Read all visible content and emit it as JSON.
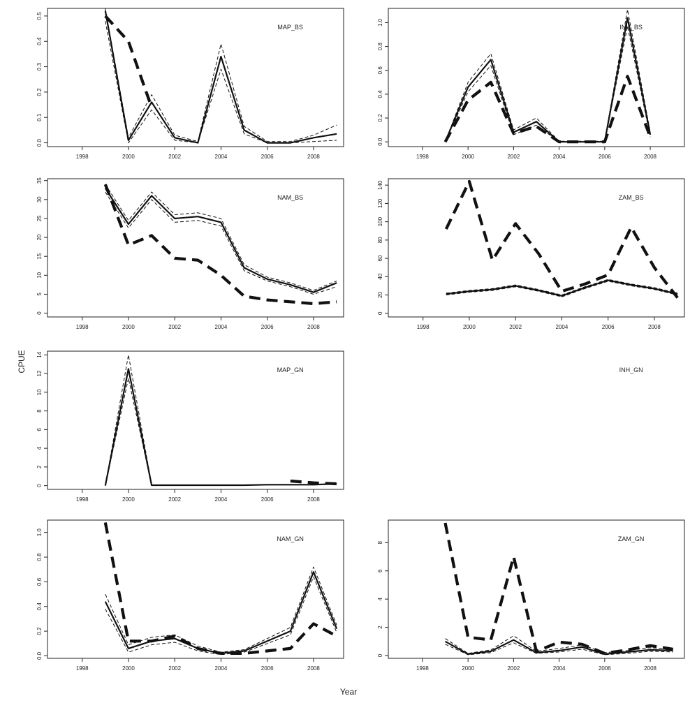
{
  "figure": {
    "ylabel": "CPUE",
    "xlabel": "Year"
  },
  "chart_data": [
    {
      "type": "line",
      "title": "MAP_BS",
      "xlim": [
        1996.5,
        2009.3
      ],
      "ylim": [
        -0.015,
        0.53
      ],
      "xticks": [
        1998,
        2000,
        2002,
        2004,
        2006,
        2008
      ],
      "yticks": [
        0.0,
        0.1,
        0.2,
        0.3,
        0.4,
        0.5
      ],
      "yticklabels": [
        "0.0",
        "0.1",
        "0.2",
        "0.3",
        "0.4",
        "0.5"
      ],
      "series": [
        {
          "style": "solid",
          "x": [
            1999,
            2000,
            2001,
            2002,
            2003,
            2004,
            2005,
            2006,
            2007,
            2008,
            2009
          ],
          "y": [
            0.52,
            0.01,
            0.16,
            0.02,
            0.0,
            0.34,
            0.05,
            0.0,
            0.0,
            0.02,
            0.035
          ]
        },
        {
          "style": "dashed-thin",
          "x": [
            1999,
            2000,
            2001,
            2002,
            2003,
            2004,
            2005,
            2006,
            2007,
            2008,
            2009
          ],
          "y": [
            0.53,
            0.02,
            0.19,
            0.03,
            0.005,
            0.39,
            0.065,
            0.005,
            0.005,
            0.03,
            0.07
          ]
        },
        {
          "style": "dashed-thin",
          "x": [
            1999,
            2000,
            2001,
            2002,
            2003,
            2004,
            2005,
            2006,
            2007,
            2008,
            2009
          ],
          "y": [
            0.48,
            0.0,
            0.13,
            0.01,
            0.0,
            0.29,
            0.035,
            0.0,
            0.0,
            0.005,
            0.01
          ]
        },
        {
          "style": "dashed-thick",
          "x": [
            1999,
            2000,
            2001
          ],
          "y": [
            0.5,
            0.4,
            0.14
          ]
        }
      ]
    },
    {
      "type": "line",
      "title": "INH_BS",
      "xlim": [
        1996.5,
        2009.5
      ],
      "ylim": [
        -0.04,
        1.12
      ],
      "xticks": [
        1998,
        2000,
        2002,
        2004,
        2006,
        2008
      ],
      "yticks": [
        0.0,
        0.2,
        0.4,
        0.6,
        0.8,
        1.0
      ],
      "yticklabels": [
        "0.0",
        "0.2",
        "0.4",
        "0.6",
        "0.8",
        "1.0"
      ],
      "series": [
        {
          "style": "solid",
          "x": [
            1999,
            2000,
            2001,
            2002,
            2003,
            2004,
            2005,
            2006,
            2007,
            2008
          ],
          "y": [
            0.0,
            0.46,
            0.69,
            0.08,
            0.17,
            0.0,
            0.0,
            0.0,
            1.04,
            0.06
          ]
        },
        {
          "style": "dashed-thin",
          "x": [
            1999,
            2000,
            2001,
            2002,
            2003,
            2004,
            2005,
            2006,
            2007,
            2008
          ],
          "y": [
            0.0,
            0.5,
            0.74,
            0.1,
            0.2,
            0.005,
            0.005,
            0.005,
            1.11,
            0.08
          ]
        },
        {
          "style": "dashed-thin",
          "x": [
            1999,
            2000,
            2001,
            2002,
            2003,
            2004,
            2005,
            2006,
            2007,
            2008
          ],
          "y": [
            0.0,
            0.42,
            0.64,
            0.06,
            0.14,
            0.0,
            0.0,
            0.0,
            0.97,
            0.04
          ]
        },
        {
          "style": "dashed-thick",
          "x": [
            1999,
            2000,
            2001,
            2002,
            2003,
            2004,
            2005,
            2006,
            2007,
            2008
          ],
          "y": [
            0.0,
            0.35,
            0.5,
            0.07,
            0.13,
            0.0,
            0.0,
            0.0,
            0.55,
            0.04
          ]
        }
      ]
    },
    {
      "type": "line",
      "title": "NAM_BS",
      "xlim": [
        1996.5,
        2009.3
      ],
      "ylim": [
        -1,
        35.5
      ],
      "xticks": [
        1998,
        2000,
        2002,
        2004,
        2006,
        2008
      ],
      "yticks": [
        0,
        5,
        10,
        15,
        20,
        25,
        30,
        35
      ],
      "yticklabels": [
        "0",
        "5",
        "10",
        "15",
        "20",
        "25",
        "30",
        "35"
      ],
      "series": [
        {
          "style": "solid",
          "x": [
            1999,
            2000,
            2001,
            2002,
            2003,
            2004,
            2005,
            2006,
            2007,
            2008,
            2009
          ],
          "y": [
            33,
            23.5,
            31,
            25,
            25.5,
            24,
            12,
            9,
            7.5,
            5.5,
            8
          ]
        },
        {
          "style": "dashed-thin",
          "x": [
            1999,
            2000,
            2001,
            2002,
            2003,
            2004,
            2005,
            2006,
            2007,
            2008,
            2009
          ],
          "y": [
            34,
            24.5,
            32,
            26,
            26.5,
            25,
            12.8,
            9.5,
            8,
            6,
            8.5
          ]
        },
        {
          "style": "dashed-thin",
          "x": [
            1999,
            2000,
            2001,
            2002,
            2003,
            2004,
            2005,
            2006,
            2007,
            2008,
            2009
          ],
          "y": [
            32,
            22.5,
            30,
            24,
            24.5,
            23,
            11.2,
            8.5,
            7,
            5,
            7
          ]
        },
        {
          "style": "dashed-thick",
          "x": [
            1999,
            2000,
            2001,
            2002,
            2003,
            2004,
            2005,
            2006,
            2007,
            2008,
            2009
          ],
          "y": [
            34,
            18,
            20.5,
            14.5,
            14,
            10,
            4.5,
            3.5,
            3,
            2.5,
            3
          ]
        }
      ]
    },
    {
      "type": "line",
      "title": "ZAM_BS",
      "xlim": [
        1996.5,
        2009.3
      ],
      "ylim": [
        -4,
        147
      ],
      "xticks": [
        1998,
        2000,
        2002,
        2004,
        2006,
        2008
      ],
      "yticks": [
        0,
        20,
        40,
        60,
        80,
        100,
        120,
        140
      ],
      "yticklabels": [
        "0",
        "20",
        "40",
        "60",
        "80",
        "100",
        "120",
        "140"
      ],
      "series": [
        {
          "style": "solid",
          "x": [
            1999,
            2000,
            2001,
            2002,
            2003,
            2004,
            2005,
            2006,
            2007,
            2008,
            2009
          ],
          "y": [
            21,
            24,
            26,
            30,
            25,
            19,
            28,
            36,
            31,
            27,
            21
          ]
        },
        {
          "style": "dashed-thin",
          "x": [
            1999,
            2000,
            2001,
            2002,
            2003,
            2004,
            2005,
            2006,
            2007,
            2008,
            2009
          ],
          "y": [
            22,
            25,
            27,
            31,
            26,
            20,
            29,
            37,
            32,
            28,
            22
          ]
        },
        {
          "style": "dashed-thin",
          "x": [
            1999,
            2000,
            2001,
            2002,
            2003,
            2004,
            2005,
            2006,
            2007,
            2008,
            2009
          ],
          "y": [
            20,
            23,
            25,
            29,
            24,
            18,
            27,
            35,
            30,
            26,
            20
          ]
        },
        {
          "style": "dashed-thick",
          "x": [
            1999,
            2000,
            2001,
            2002,
            2003,
            2004,
            2005,
            2006,
            2007,
            2008,
            2009
          ],
          "y": [
            92,
            144,
            58,
            98,
            65,
            24,
            32,
            42,
            94,
            50,
            17
          ]
        }
      ]
    },
    {
      "type": "line",
      "title": "MAP_GN",
      "xlim": [
        1996.5,
        2009.3
      ],
      "ylim": [
        -0.4,
        14.4
      ],
      "xticks": [
        1998,
        2000,
        2002,
        2004,
        2006,
        2008
      ],
      "yticks": [
        0,
        2,
        4,
        6,
        8,
        10,
        12,
        14
      ],
      "yticklabels": [
        "0",
        "2",
        "4",
        "6",
        "8",
        "10",
        "12",
        "14"
      ],
      "series": [
        {
          "style": "solid",
          "x": [
            1999,
            2000,
            2001,
            2002,
            2003,
            2004,
            2005,
            2006,
            2007,
            2008,
            2009
          ],
          "y": [
            0,
            12.5,
            0.05,
            0.05,
            0.05,
            0.05,
            0.05,
            0.1,
            0.1,
            0.1,
            0.2
          ]
        },
        {
          "style": "dashed-thin",
          "x": [
            1999,
            2000,
            2001
          ],
          "y": [
            0,
            14,
            0.1
          ]
        },
        {
          "style": "dashed-thin",
          "x": [
            1999,
            2000,
            2001
          ],
          "y": [
            0,
            11.5,
            0.02
          ]
        },
        {
          "style": "dashed-thick",
          "x": [
            2007,
            2008,
            2009
          ],
          "y": [
            0.5,
            0.3,
            0.2
          ]
        }
      ]
    },
    {
      "type": "line",
      "title": "INH_GN",
      "series": []
    },
    {
      "type": "line",
      "title": "NAM_GN",
      "xlim": [
        1996.5,
        2009.3
      ],
      "ylim": [
        -0.02,
        1.1
      ],
      "xticks": [
        1998,
        2000,
        2002,
        2004,
        2006,
        2008
      ],
      "yticks": [
        0.0,
        0.2,
        0.4,
        0.6,
        0.8,
        1.0
      ],
      "yticklabels": [
        "0.0",
        "0.2",
        "0.4",
        "0.6",
        "0.8",
        "1.0"
      ],
      "series": [
        {
          "style": "solid",
          "x": [
            1999,
            2000,
            2001,
            2002,
            2003,
            2004,
            2005,
            2006,
            2007,
            2008,
            2009
          ],
          "y": [
            0.44,
            0.06,
            0.12,
            0.14,
            0.06,
            0.02,
            0.04,
            0.12,
            0.2,
            0.68,
            0.22
          ]
        },
        {
          "style": "dashed-thin",
          "x": [
            1999,
            2000,
            2001,
            2002,
            2003,
            2004,
            2005,
            2006,
            2007,
            2008,
            2009
          ],
          "y": [
            0.5,
            0.09,
            0.15,
            0.17,
            0.08,
            0.03,
            0.05,
            0.14,
            0.23,
            0.72,
            0.25
          ]
        },
        {
          "style": "dashed-thin",
          "x": [
            1999,
            2000,
            2001,
            2002,
            2003,
            2004,
            2005,
            2006,
            2007,
            2008,
            2009
          ],
          "y": [
            0.38,
            0.03,
            0.09,
            0.11,
            0.04,
            0.01,
            0.03,
            0.1,
            0.17,
            0.64,
            0.19
          ]
        },
        {
          "style": "dashed-thick",
          "x": [
            1999,
            2000,
            2001,
            2002,
            2003,
            2004,
            2005,
            2006,
            2007,
            2008,
            2009
          ],
          "y": [
            1.08,
            0.12,
            0.12,
            0.16,
            0.06,
            0.02,
            0.02,
            0.04,
            0.06,
            0.26,
            0.16
          ]
        }
      ]
    },
    {
      "type": "line",
      "title": "ZAM_GN",
      "xlim": [
        1996.5,
        2009.5
      ],
      "ylim": [
        -0.2,
        9.6
      ],
      "xticks": [
        1998,
        2000,
        2002,
        2004,
        2006,
        2008
      ],
      "yticks": [
        0,
        2,
        4,
        6,
        8
      ],
      "yticklabels": [
        "0",
        "2",
        "4",
        "6",
        "8"
      ],
      "series": [
        {
          "style": "solid",
          "x": [
            1999,
            2000,
            2001,
            2002,
            2003,
            2004,
            2005,
            2006,
            2007,
            2008,
            2009
          ],
          "y": [
            1.0,
            0.1,
            0.3,
            1.1,
            0.2,
            0.35,
            0.6,
            0.1,
            0.25,
            0.4,
            0.35
          ]
        },
        {
          "style": "dashed-thin",
          "x": [
            1999,
            2000,
            2001,
            2002,
            2003,
            2004,
            2005,
            2006,
            2007,
            2008,
            2009
          ],
          "y": [
            1.2,
            0.15,
            0.4,
            1.4,
            0.3,
            0.5,
            0.75,
            0.2,
            0.35,
            0.55,
            0.45
          ]
        },
        {
          "style": "dashed-thin",
          "x": [
            1999,
            2000,
            2001,
            2002,
            2003,
            2004,
            2005,
            2006,
            2007,
            2008,
            2009
          ],
          "y": [
            0.8,
            0.05,
            0.2,
            0.9,
            0.15,
            0.25,
            0.45,
            0.05,
            0.15,
            0.3,
            0.25
          ]
        },
        {
          "style": "dashed-thick",
          "x": [
            1999,
            2000,
            2001,
            2002,
            2003,
            2004,
            2005,
            2006,
            2007,
            2008,
            2009
          ],
          "y": [
            9.4,
            1.3,
            1.1,
            7.0,
            0.3,
            0.95,
            0.8,
            0.15,
            0.4,
            0.7,
            0.45
          ]
        }
      ]
    }
  ]
}
